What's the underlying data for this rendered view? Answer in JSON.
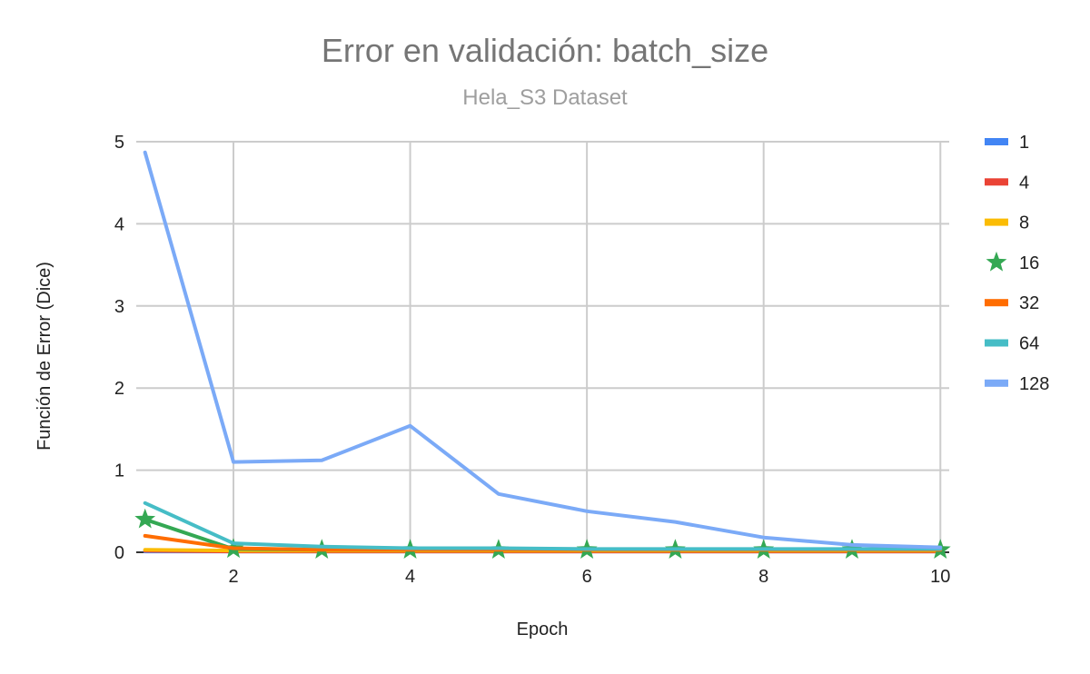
{
  "chart_data": {
    "type": "line",
    "title": "Error en validación: batch_size",
    "subtitle": "Hela_S3 Dataset",
    "xlabel": "Epoch",
    "ylabel": "Función de Error (Dice)",
    "x": [
      1,
      2,
      3,
      4,
      5,
      6,
      7,
      8,
      9,
      10
    ],
    "xlim": [
      0.9,
      10.1
    ],
    "ylim": [
      0,
      5
    ],
    "x_ticks": [
      2,
      4,
      6,
      8,
      10
    ],
    "y_ticks": [
      0,
      1,
      2,
      3,
      4,
      5
    ],
    "grid": true,
    "legend_position": "right",
    "series": [
      {
        "name": "1",
        "color": "#4285f4",
        "marker": "none",
        "values": [
          0.01,
          0.01,
          0.01,
          0.01,
          0.01,
          0.01,
          0.01,
          0.01,
          0.01,
          0.01
        ]
      },
      {
        "name": "4",
        "color": "#ea4335",
        "marker": "none",
        "values": [
          0.02,
          0.01,
          0.01,
          0.01,
          0.01,
          0.01,
          0.01,
          0.01,
          0.01,
          0.01
        ]
      },
      {
        "name": "8",
        "color": "#fbbc04",
        "marker": "none",
        "values": [
          0.03,
          0.02,
          0.02,
          0.02,
          0.02,
          0.02,
          0.02,
          0.02,
          0.02,
          0.02
        ]
      },
      {
        "name": "16",
        "color": "#34a853",
        "marker": "star",
        "values": [
          0.4,
          0.04,
          0.03,
          0.03,
          0.03,
          0.03,
          0.03,
          0.03,
          0.03,
          0.03
        ]
      },
      {
        "name": "32",
        "color": "#ff6d01",
        "marker": "none",
        "values": [
          0.2,
          0.05,
          0.03,
          0.03,
          0.03,
          0.03,
          0.03,
          0.03,
          0.03,
          0.03
        ]
      },
      {
        "name": "64",
        "color": "#46bdc6",
        "marker": "none",
        "values": [
          0.6,
          0.11,
          0.07,
          0.05,
          0.05,
          0.04,
          0.04,
          0.04,
          0.04,
          0.04
        ]
      },
      {
        "name": "128",
        "color": "#7baaf7",
        "marker": "none",
        "values": [
          4.87,
          1.1,
          1.12,
          1.54,
          0.71,
          0.5,
          0.37,
          0.18,
          0.09,
          0.06
        ]
      }
    ]
  }
}
